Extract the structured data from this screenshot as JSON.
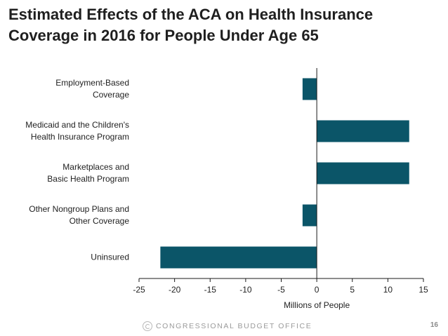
{
  "title_lines": [
    "Estimated Effects of the ACA on Health Insurance",
    "Coverage in 2016 for People Under Age 65"
  ],
  "chart_data": {
    "type": "bar",
    "orientation": "horizontal",
    "title": "Estimated Effects of the ACA on Health Insurance Coverage in 2016 for People Under Age 65",
    "xlabel": "Millions of People",
    "ylabel": "",
    "xlim": [
      -25,
      15
    ],
    "xticks": [
      -25,
      -20,
      -15,
      -10,
      -5,
      0,
      5,
      10,
      15
    ],
    "grid": false,
    "bar_color": "#0b5568",
    "categories": [
      [
        "Employment-Based",
        "Coverage"
      ],
      [
        "Medicaid and the Children's",
        "Health Insurance Program"
      ],
      [
        "Marketplaces and",
        "Basic Health Program"
      ],
      [
        "Other Nongroup Plans and",
        "Other Coverage"
      ],
      [
        "Uninsured"
      ]
    ],
    "values": [
      -2,
      13,
      13,
      -2,
      -22
    ]
  },
  "footer": {
    "agency": "CONGRESSIONAL BUDGET OFFICE",
    "page_number": "16"
  }
}
